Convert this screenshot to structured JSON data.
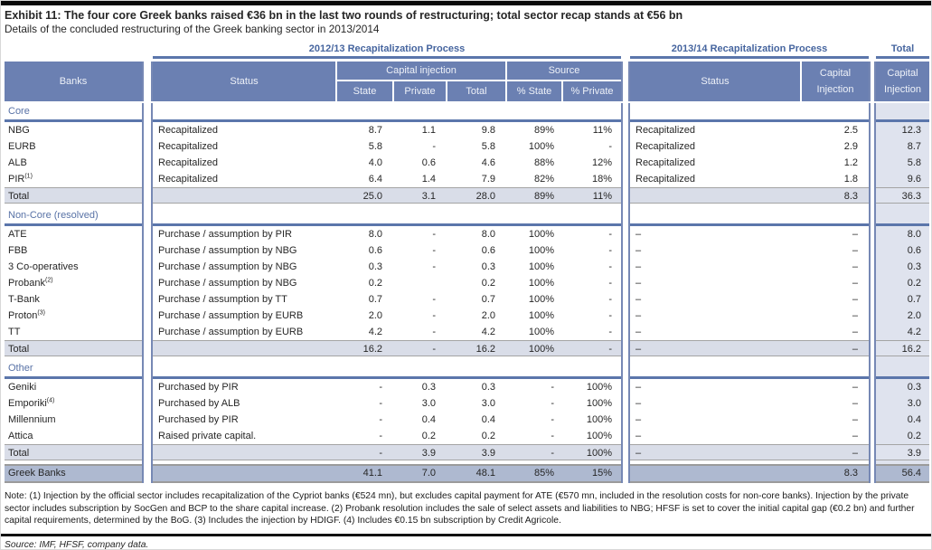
{
  "page": {
    "title": "Exhibit 11: The four core Greek banks raised €36 bn in the last two rounds of restructuring; total sector recap stands at €56 bn",
    "subtitle": "Details of the concluded restructuring of the Greek banking sector in 2013/2014",
    "note": "Note: (1) Injection by the official sector includes recapitalization of the Cypriot banks (€524 mn), but excludes capital payment for ATE (€570 mn, included in the resolution costs for non-core banks). Injection by the private sector includes subscription by SocGen and BCP to the share capital increase. (2) Probank resolution includes the sale of select assets and liabilities to NBG; HFSF is set to cover the initial capital gap (€0.2 bn) and further capital requirements, determined by the BoG. (3) Includes the injection by HDIGF. (4) Includes €0.15 bn subscription by Credit Agricole.",
    "source": "Source: IMF, HFSF, company data."
  },
  "colors": {
    "header_blue": "#6b80b2",
    "section_line_blue": "#5b76ab",
    "heading_text_blue": "#46659f",
    "total_row_bg": "#d9dde8",
    "total_column_bg": "#dfe3ee",
    "grand_total_bg": "#aeb9d0"
  },
  "table": {
    "group_headers": {
      "process_2012": "2012/13 Recapitalization Process",
      "process_2013": "2013/14 Recapitalization Process",
      "total": "Total"
    },
    "columns": {
      "banks": "Banks",
      "status": "Status",
      "capital_injection": "Capital injection",
      "state": "State",
      "private": "Private",
      "total": "Total",
      "pct_state": "% State",
      "pct_private": "% Private",
      "status2": "Status",
      "capital_injection2": "Capital Injection",
      "capital_injection_total": "Capital Injection"
    },
    "sections": [
      {
        "label": "Core",
        "rows": [
          {
            "bank": "NBG",
            "status1": "Recapitalized",
            "state": "8.7",
            "private": "1.1",
            "total": "9.8",
            "pct_state": "89%",
            "pct_private": "11%",
            "status2": "Recapitalized",
            "inj2": "2.5",
            "grand": "12.3"
          },
          {
            "bank": "EURB",
            "status1": "Recapitalized",
            "state": "5.8",
            "private": "-",
            "total": "5.8",
            "pct_state": "100%",
            "pct_private": "-",
            "status2": "Recapitalized",
            "inj2": "2.9",
            "grand": "8.7"
          },
          {
            "bank": "ALB",
            "status1": "Recapitalized",
            "state": "4.0",
            "private": "0.6",
            "total": "4.6",
            "pct_state": "88%",
            "pct_private": "12%",
            "status2": "Recapitalized",
            "inj2": "1.2",
            "grand": "5.8"
          },
          {
            "bank": {
              "name": "PIR",
              "sup": "(1)"
            },
            "status1": "Recapitalized",
            "state": "6.4",
            "private": "1.4",
            "total": "7.9",
            "pct_state": "82%",
            "pct_private": "18%",
            "status2": "Recapitalized",
            "inj2": "1.8",
            "grand": "9.6"
          }
        ],
        "total_row": {
          "label": "Total",
          "status1": "",
          "state": "25.0",
          "private": "3.1",
          "total": "28.0",
          "pct_state": "89%",
          "pct_private": "11%",
          "status2": "",
          "inj2": "8.3",
          "grand": "36.3"
        }
      },
      {
        "label": "Non-Core (resolved)",
        "rows": [
          {
            "bank": "ATE",
            "status1": "Purchase / assumption by PIR",
            "state": "8.0",
            "private": "-",
            "total": "8.0",
            "pct_state": "100%",
            "pct_private": "-",
            "status2": "–",
            "inj2": "–",
            "grand": "8.0"
          },
          {
            "bank": "FBB",
            "status1": "Purchase / assumption by NBG",
            "state": "0.6",
            "private": "-",
            "total": "0.6",
            "pct_state": "100%",
            "pct_private": "-",
            "status2": "–",
            "inj2": "–",
            "grand": "0.6"
          },
          {
            "bank": "3 Co-operatives",
            "status1": "Purchase / assumption by NBG",
            "state": "0.3",
            "private": "-",
            "total": "0.3",
            "pct_state": "100%",
            "pct_private": "-",
            "status2": "–",
            "inj2": "–",
            "grand": "0.3"
          },
          {
            "bank": {
              "name": "Probank",
              "sup": "(2)"
            },
            "status1": "Purchase / assumption by NBG",
            "state": "0.2",
            "private": "",
            "total": "0.2",
            "pct_state": "100%",
            "pct_private": "-",
            "status2": "–",
            "inj2": "–",
            "grand": "0.2"
          },
          {
            "bank": "T-Bank",
            "status1": "Purchase / assumption by TT",
            "state": "0.7",
            "private": "-",
            "total": "0.7",
            "pct_state": "100%",
            "pct_private": "-",
            "status2": "–",
            "inj2": "–",
            "grand": "0.7"
          },
          {
            "bank": {
              "name": "Proton",
              "sup": "(3)"
            },
            "status1": "Purchase / assumption by EURB",
            "state": "2.0",
            "private": "-",
            "total": "2.0",
            "pct_state": "100%",
            "pct_private": "-",
            "status2": "–",
            "inj2": "–",
            "grand": "2.0"
          },
          {
            "bank": "TT",
            "status1": "Purchase / assumption by EURB",
            "state": "4.2",
            "private": "-",
            "total": "4.2",
            "pct_state": "100%",
            "pct_private": "-",
            "status2": "–",
            "inj2": "–",
            "grand": "4.2"
          }
        ],
        "total_row": {
          "label": "Total",
          "status1": "",
          "state": "16.2",
          "private": "-",
          "total": "16.2",
          "pct_state": "100%",
          "pct_private": "-",
          "status2": "–",
          "inj2": "–",
          "grand": "16.2"
        }
      },
      {
        "label": "Other",
        "rows": [
          {
            "bank": "Geniki",
            "status1": "Purchased by PIR",
            "state": "-",
            "private": "0.3",
            "total": "0.3",
            "pct_state": "-",
            "pct_private": "100%",
            "status2": "–",
            "inj2": "–",
            "grand": "0.3"
          },
          {
            "bank": {
              "name": "Emporiki",
              "sup": "(4)"
            },
            "status1": "Purchased by ALB",
            "state": "-",
            "private": "3.0",
            "total": "3.0",
            "pct_state": "-",
            "pct_private": "100%",
            "status2": "–",
            "inj2": "–",
            "grand": "3.0"
          },
          {
            "bank": "Millennium",
            "status1": "Purchased by PIR",
            "state": "-",
            "private": "0.4",
            "total": "0.4",
            "pct_state": "-",
            "pct_private": "100%",
            "status2": "–",
            "inj2": "–",
            "grand": "0.4"
          },
          {
            "bank": "Attica",
            "status1": "Raised private capital.",
            "state": "-",
            "private": "0.2",
            "total": "0.2",
            "pct_state": "-",
            "pct_private": "100%",
            "status2": "–",
            "inj2": "–",
            "grand": "0.2"
          }
        ],
        "total_row": {
          "label": "Total",
          "status1": "",
          "state": "-",
          "private": "3.9",
          "total": "3.9",
          "pct_state": "-",
          "pct_private": "100%",
          "status2": "–",
          "inj2": "–",
          "grand": "3.9"
        }
      }
    ],
    "grand_total_row": {
      "label": "Greek Banks",
      "status1": "",
      "state": "41.1",
      "private": "7.0",
      "total": "48.1",
      "pct_state": "85%",
      "pct_private": "15%",
      "status2": "",
      "inj2": "8.3",
      "grand": "56.4"
    }
  }
}
